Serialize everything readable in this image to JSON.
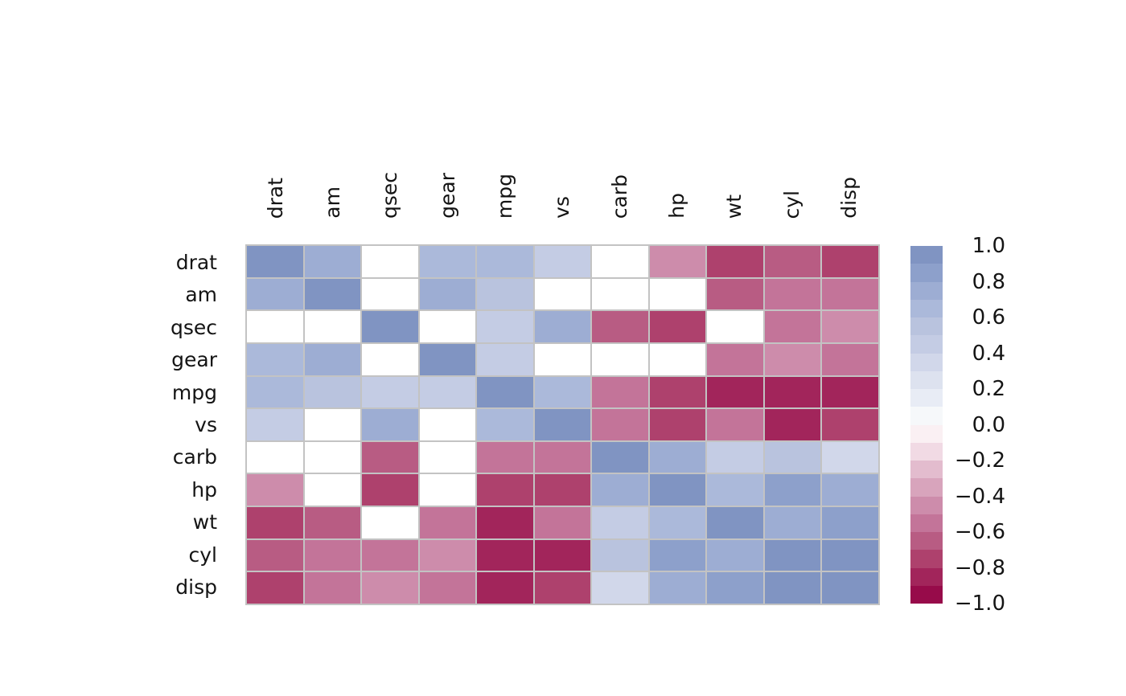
{
  "chart_data": {
    "type": "heatmap",
    "title": "",
    "xlabel": "",
    "ylabel": "",
    "variables": [
      "drat",
      "am",
      "qsec",
      "gear",
      "mpg",
      "vs",
      "carb",
      "hp",
      "wt",
      "cyl",
      "disp"
    ],
    "matrix": [
      [
        1.0,
        0.7127,
        null,
        0.6996,
        0.6812,
        0.4403,
        null,
        -0.4488,
        -0.7124,
        -0.6999,
        -0.7102
      ],
      [
        0.7127,
        1.0,
        null,
        0.7941,
        0.5998,
        null,
        null,
        null,
        -0.6925,
        -0.5226,
        -0.5912
      ],
      [
        null,
        null,
        1.0,
        null,
        0.4187,
        0.7445,
        -0.6562,
        -0.7082,
        null,
        -0.5912,
        -0.4342
      ],
      [
        0.6996,
        0.7941,
        null,
        1.0,
        0.4803,
        null,
        null,
        null,
        -0.5833,
        -0.4927,
        -0.5556
      ],
      [
        0.6812,
        0.5998,
        0.4187,
        0.4803,
        1.0,
        0.664,
        -0.5509,
        -0.7762,
        -0.8677,
        -0.8522,
        -0.8476
      ],
      [
        0.4403,
        null,
        0.7445,
        null,
        0.664,
        1.0,
        -0.5696,
        -0.7231,
        -0.5549,
        -0.8108,
        -0.7104
      ],
      [
        null,
        null,
        -0.6562,
        null,
        -0.5509,
        -0.5696,
        1.0,
        0.7498,
        0.4276,
        0.527,
        0.395
      ],
      [
        -0.4488,
        null,
        -0.7082,
        null,
        -0.7762,
        -0.7231,
        0.7498,
        1.0,
        0.6587,
        0.8324,
        0.7909
      ],
      [
        -0.7124,
        -0.6925,
        null,
        -0.5833,
        -0.8677,
        -0.5549,
        0.4276,
        0.6587,
        1.0,
        0.7825,
        0.888
      ],
      [
        -0.6999,
        -0.5226,
        -0.5912,
        -0.4927,
        -0.8522,
        -0.8108,
        0.527,
        0.8324,
        0.7825,
        1.0,
        0.902
      ],
      [
        -0.7102,
        -0.5912,
        -0.4342,
        -0.5556,
        -0.8476,
        -0.7104,
        0.395,
        0.7909,
        0.888,
        0.902,
        1.0
      ]
    ],
    "vmin": -1.0,
    "vmax": 1.0,
    "levels": 20,
    "palette_top_to_bottom": [
      "#8094c2",
      "#8da0cb",
      "#9dadd3",
      "#abb9da",
      "#b9c3de",
      "#c4cce4",
      "#d1d7ea",
      "#dde2ef",
      "#e8ecf5",
      "#f6f8fa",
      "#faf0f3",
      "#f1dae4",
      "#e3bcce",
      "#d8a4bc",
      "#cd8cab",
      "#c37499",
      "#b85c83",
      "#ae416d",
      "#a2255b",
      "#970b4a"
    ],
    "masked_color": "#ffffff",
    "grid_color": "#c3c3c3",
    "background_color": "#ffffff",
    "legend_position": "right",
    "colorbar_ticks": [
      {
        "label": "1.0",
        "value": 1.0
      },
      {
        "label": "0.8",
        "value": 0.8
      },
      {
        "label": "0.6",
        "value": 0.6
      },
      {
        "label": "0.4",
        "value": 0.4
      },
      {
        "label": "0.2",
        "value": 0.2
      },
      {
        "label": "0.0",
        "value": 0.0
      },
      {
        "label": "−0.2",
        "value": -0.2
      },
      {
        "label": "−0.4",
        "value": -0.4
      },
      {
        "label": "−0.6",
        "value": -0.6
      },
      {
        "label": "−0.8",
        "value": -0.8
      },
      {
        "label": "−1.0",
        "value": -1.0
      }
    ]
  }
}
